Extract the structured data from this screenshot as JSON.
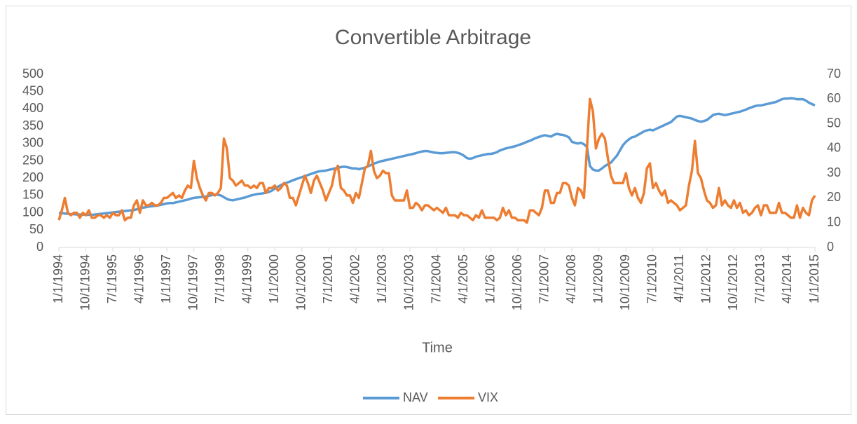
{
  "chart_data": {
    "type": "line",
    "title": "Convertible Arbitrage",
    "x_label": "Time",
    "categories": [
      "1/1/1994",
      null,
      null,
      null,
      null,
      null,
      null,
      null,
      null,
      "10/1/1994",
      null,
      null,
      null,
      null,
      null,
      null,
      null,
      null,
      "7/1/1995",
      null,
      null,
      null,
      null,
      null,
      null,
      null,
      null,
      "4/1/1996",
      null,
      null,
      null,
      null,
      null,
      null,
      null,
      null,
      "1/1/1997",
      null,
      null,
      null,
      null,
      null,
      null,
      null,
      null,
      "10/1/1997",
      null,
      null,
      null,
      null,
      null,
      null,
      null,
      null,
      "7/1/1998",
      null,
      null,
      null,
      null,
      null,
      null,
      null,
      null,
      "4/1/1999",
      null,
      null,
      null,
      null,
      null,
      null,
      null,
      null,
      "1/1/2000",
      null,
      null,
      null,
      null,
      null,
      null,
      null,
      null,
      "10/1/2000",
      null,
      null,
      null,
      null,
      null,
      null,
      null,
      null,
      "7/1/2001",
      null,
      null,
      null,
      null,
      null,
      null,
      null,
      null,
      "4/1/2002",
      null,
      null,
      null,
      null,
      null,
      null,
      null,
      null,
      "1/1/2003",
      null,
      null,
      null,
      null,
      null,
      null,
      null,
      null,
      "10/1/2003",
      null,
      null,
      null,
      null,
      null,
      null,
      null,
      null,
      "7/1/2004",
      null,
      null,
      null,
      null,
      null,
      null,
      null,
      null,
      "4/1/2005",
      null,
      null,
      null,
      null,
      null,
      null,
      null,
      null,
      "1/1/2006",
      null,
      null,
      null,
      null,
      null,
      null,
      null,
      null,
      "10/1/2006",
      null,
      null,
      null,
      null,
      null,
      null,
      null,
      null,
      "7/1/2007",
      null,
      null,
      null,
      null,
      null,
      null,
      null,
      null,
      "4/1/2008",
      null,
      null,
      null,
      null,
      null,
      null,
      null,
      null,
      "1/1/2009",
      null,
      null,
      null,
      null,
      null,
      null,
      null,
      null,
      "10/1/2009",
      null,
      null,
      null,
      null,
      null,
      null,
      null,
      null,
      "7/1/2010",
      null,
      null,
      null,
      null,
      null,
      null,
      null,
      null,
      "4/1/2011",
      null,
      null,
      null,
      null,
      null,
      null,
      null,
      null,
      "1/1/2012",
      null,
      null,
      null,
      null,
      null,
      null,
      null,
      null,
      "10/1/2012",
      null,
      null,
      null,
      null,
      null,
      null,
      null,
      null,
      "7/1/2013",
      null,
      null,
      null,
      null,
      null,
      null,
      null,
      null,
      "4/1/2014",
      null,
      null,
      null,
      null,
      null,
      null,
      null,
      null,
      "1/1/2015"
    ],
    "series": [
      {
        "name": "NAV",
        "color": "#5b9bd5",
        "values": [
          100,
          99,
          98,
          97,
          96,
          96,
          95,
          95,
          95,
          94,
          94,
          94,
          95,
          96,
          97,
          98,
          99,
          100,
          101,
          102,
          103,
          104,
          105,
          106,
          107,
          108,
          110,
          112,
          115,
          116,
          118,
          119,
          120,
          121,
          123,
          125,
          127,
          128,
          128,
          130,
          132,
          134,
          136,
          138,
          141,
          143,
          144,
          145,
          146,
          147,
          149,
          151,
          152,
          152,
          150,
          145,
          140,
          137,
          136,
          138,
          140,
          142,
          144,
          147,
          150,
          152,
          154,
          155,
          156,
          158,
          160,
          164,
          170,
          175,
          180,
          184,
          187,
          190,
          194,
          197,
          200,
          203,
          206,
          209,
          212,
          215,
          218,
          220,
          221,
          222,
          224,
          226,
          228,
          230,
          232,
          233,
          232,
          230,
          228,
          228,
          226,
          228,
          230,
          234,
          238,
          242,
          245,
          248,
          250,
          252,
          254,
          256,
          258,
          260,
          262,
          264,
          266,
          268,
          270,
          272,
          275,
          277,
          278,
          278,
          276,
          274,
          273,
          272,
          272,
          273,
          274,
          275,
          275,
          273,
          270,
          265,
          258,
          256,
          258,
          262,
          264,
          266,
          268,
          270,
          270,
          272,
          275,
          280,
          283,
          286,
          288,
          290,
          292,
          295,
          298,
          301,
          305,
          308,
          312,
          316,
          319,
          322,
          324,
          322,
          320,
          325,
          328,
          326,
          325,
          322,
          318,
          305,
          302,
          300,
          302,
          298,
          290,
          235,
          225,
          222,
          222,
          228,
          235,
          240,
          245,
          255,
          265,
          280,
          295,
          305,
          312,
          318,
          320,
          325,
          330,
          335,
          338,
          340,
          338,
          342,
          346,
          350,
          354,
          358,
          362,
          370,
          378,
          380,
          378,
          376,
          374,
          372,
          368,
          365,
          363,
          365,
          368,
          375,
          382,
          385,
          386,
          384,
          382,
          384,
          386,
          388,
          390,
          392,
          395,
          398,
          402,
          405,
          408,
          410,
          410,
          412,
          414,
          416,
          418,
          420,
          424,
          428,
          430,
          430,
          431,
          430,
          428,
          428,
          428,
          424,
          418,
          414,
          410
        ]
      },
      {
        "name": "VIX",
        "color": "#ed7d31",
        "axis": "y2",
        "values": [
          11,
          15,
          20,
          14,
          13,
          14,
          14,
          12,
          14,
          13,
          15,
          12,
          12,
          13,
          13,
          12,
          13,
          12,
          14,
          13,
          13,
          15,
          11,
          12,
          12,
          17,
          19,
          14,
          19,
          17,
          17,
          18,
          17,
          17,
          18,
          20,
          20,
          21,
          22,
          20,
          21,
          20,
          23,
          25,
          24,
          35,
          28,
          24,
          21,
          19,
          22,
          22,
          21,
          22,
          24,
          44,
          40,
          28,
          27,
          25,
          26,
          27,
          25,
          25,
          24,
          25,
          24,
          26,
          26,
          22,
          24,
          24,
          25,
          23,
          24,
          26,
          25,
          20,
          20,
          17,
          21,
          25,
          29,
          26,
          22,
          27,
          29,
          26,
          23,
          19,
          22,
          25,
          31,
          33,
          24,
          23,
          21,
          21,
          18,
          22,
          20,
          26,
          32,
          33,
          39,
          31,
          28,
          29,
          31,
          30,
          30,
          21,
          19,
          19,
          19,
          19,
          23,
          16,
          16,
          18,
          17,
          15,
          17,
          17,
          16,
          15,
          16,
          15,
          14,
          16,
          13,
          13,
          13,
          12,
          14,
          13,
          13,
          12,
          11,
          13,
          12,
          15,
          12,
          12,
          12,
          12,
          11,
          12,
          16,
          13,
          15,
          12,
          12,
          11,
          11,
          11,
          10,
          15,
          15,
          14,
          13,
          16,
          23,
          23,
          18,
          18,
          22,
          22,
          26,
          26,
          25,
          20,
          17,
          24,
          23,
          20,
          40,
          60,
          55,
          40,
          44,
          46,
          44,
          36,
          29,
          26,
          26,
          26,
          26,
          30,
          24,
          21,
          24,
          20,
          18,
          22,
          32,
          34,
          24,
          26,
          23,
          21,
          23,
          18,
          19,
          18,
          17,
          15,
          16,
          17,
          25,
          31,
          43,
          30,
          28,
          23,
          19,
          18,
          16,
          17,
          24,
          17,
          19,
          17,
          16,
          19,
          16,
          18,
          14,
          15,
          13,
          14,
          16,
          17,
          13,
          17,
          17,
          14,
          14,
          14,
          18,
          14,
          14,
          13,
          12,
          12,
          17,
          12,
          16,
          14,
          13,
          19,
          21
        ]
      }
    ],
    "ylim": [
      0,
      500
    ],
    "yticks": [
      0,
      50,
      100,
      150,
      200,
      250,
      300,
      350,
      400,
      450,
      500
    ],
    "y2lim": [
      0,
      70
    ],
    "y2ticks": [
      0,
      10,
      20,
      30,
      40,
      50,
      60,
      70
    ],
    "grid": false,
    "legend": "bottom"
  }
}
